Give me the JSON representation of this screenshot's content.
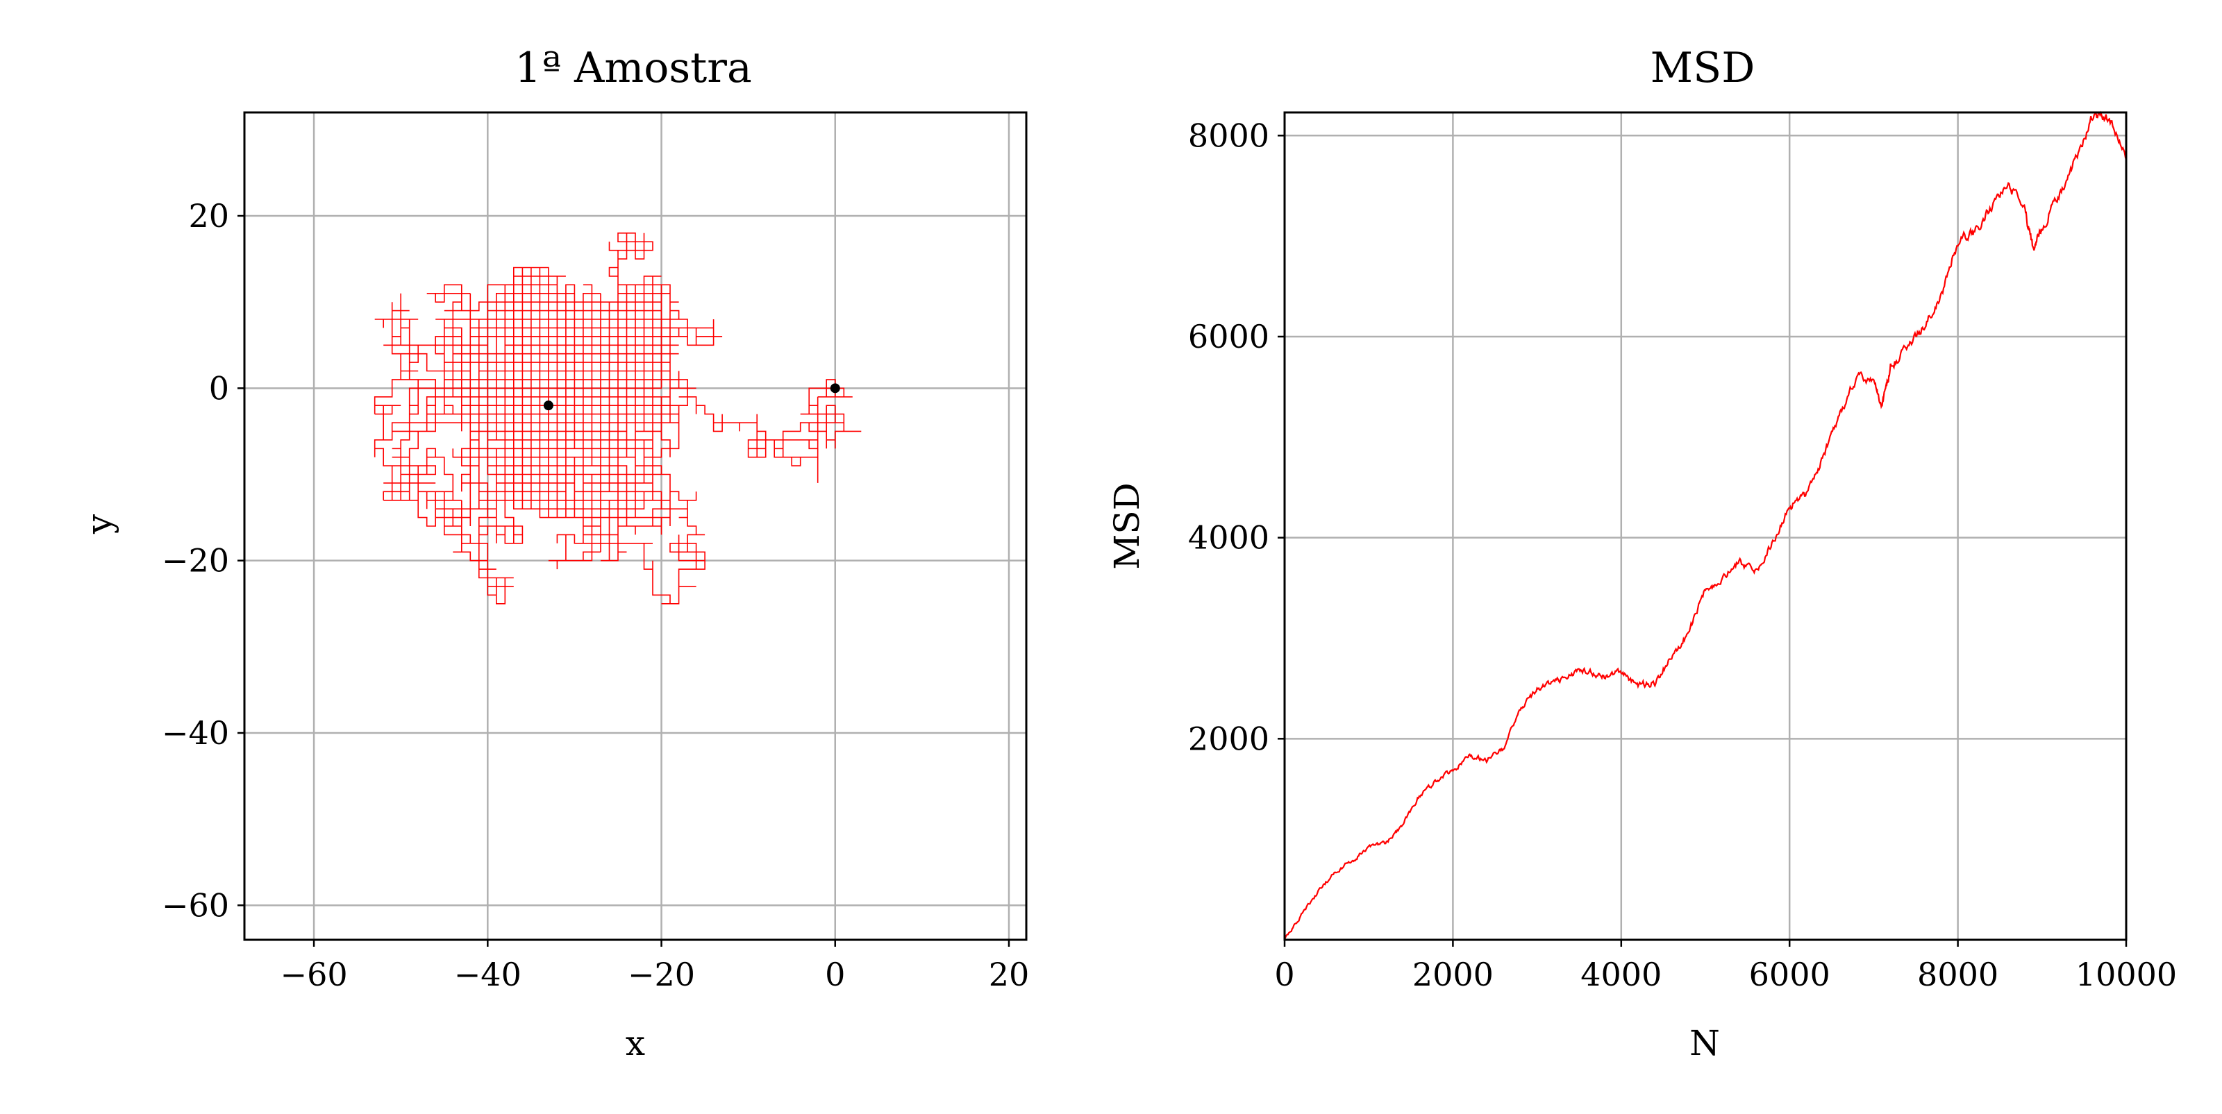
{
  "chart_data": [
    {
      "type": "line",
      "title": "1ª Amostra",
      "xlabel": "x",
      "ylabel": "y",
      "xlim": [
        -68,
        22
      ],
      "ylim": [
        -64,
        32
      ],
      "xticks": [
        -60,
        -40,
        -20,
        0,
        20
      ],
      "yticks": [
        -60,
        -40,
        -20,
        0,
        20
      ],
      "xtick_labels": [
        "−60",
        "−40",
        "−20",
        "0",
        "20"
      ],
      "ytick_labels": [
        "−60",
        "−40",
        "−20",
        "0",
        "20"
      ],
      "grid": true,
      "series": [
        {
          "values": "lattice random walk, 10000 unit steps",
          "color": "#ff0000"
        }
      ],
      "markers": [
        {
          "x": 0,
          "y": 0,
          "color": "#000000"
        },
        {
          "x": -33,
          "y": -2,
          "color": "#000000"
        }
      ]
    },
    {
      "type": "line",
      "title": "MSD",
      "xlabel": "N",
      "ylabel": "MSD",
      "xlim": [
        0,
        10000
      ],
      "ylim": [
        0,
        8230
      ],
      "xticks": [
        0,
        2000,
        4000,
        6000,
        8000,
        10000
      ],
      "yticks": [
        2000,
        4000,
        6000,
        8000
      ],
      "xtick_labels": [
        "0",
        "2000",
        "4000",
        "6000",
        "8000",
        "10000"
      ],
      "ytick_labels": [
        "2000",
        "4000",
        "6000",
        "8000"
      ],
      "grid": true,
      "series": [
        {
          "color": "#ff0000",
          "x": [
            0,
            200,
            400,
            600,
            800,
            1000,
            1200,
            1400,
            1600,
            1800,
            2000,
            2200,
            2400,
            2600,
            2800,
            3000,
            3200,
            3400,
            3600,
            3800,
            4000,
            4200,
            4400,
            4600,
            4800,
            5000,
            5200,
            5400,
            5600,
            5800,
            6000,
            6200,
            6400,
            6600,
            6800,
            7000,
            7100,
            7200,
            7400,
            7600,
            7800,
            8000,
            8200,
            8400,
            8600,
            8800,
            8900,
            9000,
            9200,
            9400,
            9600,
            9800,
            10000
          ],
          "y": [
            0,
            250,
            480,
            680,
            780,
            930,
            960,
            1150,
            1430,
            1580,
            1680,
            1830,
            1790,
            1900,
            2300,
            2490,
            2560,
            2650,
            2680,
            2620,
            2660,
            2530,
            2560,
            2820,
            3050,
            3500,
            3580,
            3770,
            3650,
            3950,
            4300,
            4440,
            4800,
            5230,
            5600,
            5550,
            5310,
            5700,
            5900,
            6100,
            6400,
            6950,
            7050,
            7300,
            7520,
            7250,
            6880,
            7100,
            7400,
            7750,
            8200,
            8180,
            7800
          ]
        }
      ]
    }
  ]
}
